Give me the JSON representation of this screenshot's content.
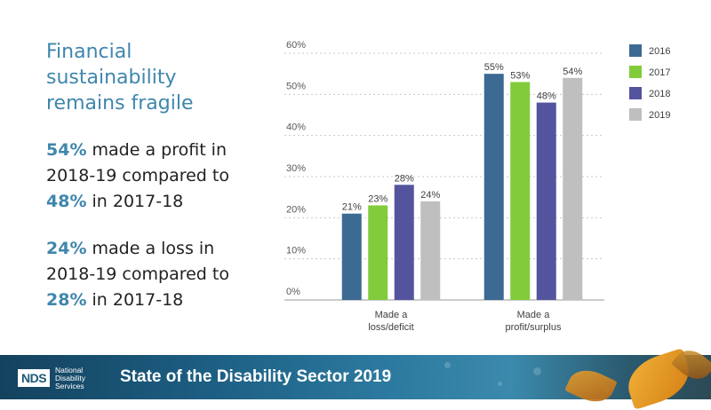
{
  "slide": {
    "title": "Financial sustainability remains fragile",
    "stat1": {
      "p1": "54%",
      "t1": " made a profit in 2018-19 compared to ",
      "p2": "48%",
      "t2": " in 2017-18"
    },
    "stat2": {
      "p1": "24%",
      "t1": " made a loss in 2018-19 compared to ",
      "p2": "28%",
      "t2": " in 2017-18"
    }
  },
  "footer": {
    "logo_text": "NDS",
    "org_line1": "National",
    "org_line2": "Disability",
    "org_line3": "Services",
    "title": "State of the Disability Sector 2019"
  },
  "colors": {
    "accent": "#3f86ad"
  },
  "chart_data": {
    "type": "bar",
    "categories": [
      [
        "Made a",
        "loss/deficit"
      ],
      [
        "Made a",
        "profit/surplus"
      ]
    ],
    "series": [
      {
        "name": "2016",
        "color": "#3c6a93",
        "values": [
          21,
          55
        ]
      },
      {
        "name": "2017",
        "color": "#82cc3c",
        "values": [
          23,
          53
        ]
      },
      {
        "name": "2018",
        "color": "#54549e",
        "values": [
          28,
          48
        ]
      },
      {
        "name": "2019",
        "color": "#bfbfbf",
        "values": [
          24,
          54
        ]
      }
    ],
    "ylim": [
      0,
      60
    ],
    "yticks": [
      0,
      10,
      20,
      30,
      40,
      50,
      60
    ],
    "tick_suffix": "%",
    "value_suffix": "%",
    "grid": true,
    "legend_position": "right"
  }
}
